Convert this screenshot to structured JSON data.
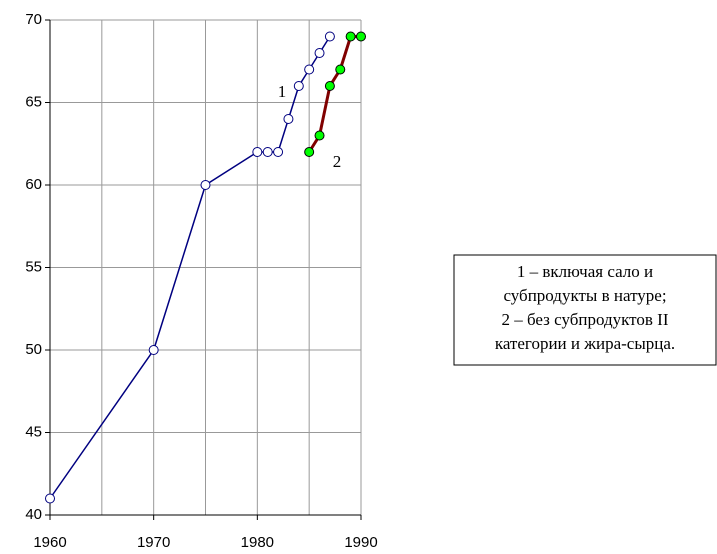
{
  "chart_data": {
    "type": "line",
    "xlim": [
      1960,
      1990
    ],
    "ylim": [
      40,
      70
    ],
    "xticks": [
      1960,
      1970,
      1980,
      1990
    ],
    "xgrid": [
      1960,
      1965,
      1970,
      1975,
      1980,
      1985,
      1990
    ],
    "yticks": [
      40,
      45,
      50,
      55,
      60,
      65,
      70
    ],
    "grid": true,
    "series": [
      {
        "name": "1",
        "color": "#000080",
        "marker_color": "#ffffff",
        "x": [
          1960,
          1970,
          1975,
          1980,
          1981,
          1982,
          1983,
          1984,
          1985,
          1986,
          1987
        ],
        "values": [
          41,
          50,
          60,
          62,
          62,
          62,
          64,
          66,
          67,
          68,
          69
        ]
      },
      {
        "name": "2",
        "color": "#800000",
        "marker_color": "#00ff00",
        "x": [
          1985,
          1986,
          1987,
          1988,
          1989,
          1990
        ],
        "values": [
          62,
          63,
          66,
          67,
          69,
          69
        ]
      }
    ],
    "legend": [
      "1 – включая сало и",
      "субпродукты в натуре;",
      "2 – без субпродуктов II",
      "категории и жира-сырца."
    ]
  }
}
